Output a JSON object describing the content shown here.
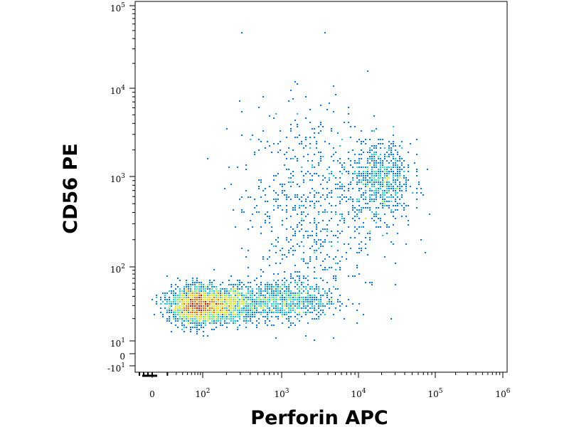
{
  "chart_data": {
    "type": "scatter",
    "subtype": "flow-cytometry-density-dot-plot",
    "xlabel": "Perforin APC",
    "ylabel": "CD56 PE",
    "x_scale": "biexponential",
    "y_scale": "biexponential",
    "xlim": [
      -30,
      1000000
    ],
    "ylim": [
      -20,
      150000
    ],
    "grid": false,
    "x_ticks": [
      {
        "value": 0,
        "base": "0",
        "exp": ""
      },
      {
        "value": 100,
        "base": "10",
        "exp": "2"
      },
      {
        "value": 1000,
        "base": "10",
        "exp": "3"
      },
      {
        "value": 10000,
        "base": "10",
        "exp": "4"
      },
      {
        "value": 100000,
        "base": "10",
        "exp": "5"
      },
      {
        "value": 1000000,
        "base": "10",
        "exp": "6"
      }
    ],
    "y_ticks": [
      {
        "value": -10,
        "base": "-10",
        "exp": "1"
      },
      {
        "value": 0,
        "base": "0",
        "exp": ""
      },
      {
        "value": 10,
        "base": "10",
        "exp": "1"
      },
      {
        "value": 100,
        "base": "10",
        "exp": "2"
      },
      {
        "value": 1000,
        "base": "10",
        "exp": "3"
      },
      {
        "value": 10000,
        "base": "10",
        "exp": "4"
      },
      {
        "value": 100000,
        "base": "10",
        "exp": "5"
      }
    ],
    "populations": [
      {
        "name": "",
        "x_center": 100,
        "y_center": 30,
        "x_spread_decades": 0.3,
        "y_spread_decades": 0.12,
        "relative_events": 55
      },
      {
        "name": "",
        "x_center": 1000,
        "y_center": 35,
        "x_spread_decades": 0.35,
        "y_spread_decades": 0.14,
        "relative_events": 18
      },
      {
        "name": "",
        "x_center": 2500,
        "y_center": 500,
        "x_spread_decades": 0.45,
        "y_spread_decades": 0.55,
        "relative_events": 14
      },
      {
        "name": "",
        "x_center": 20000,
        "y_center": 900,
        "x_spread_decades": 0.2,
        "y_spread_decades": 0.22,
        "relative_events": 13
      }
    ],
    "density_color_scale": [
      "#0000cc",
      "#0077ff",
      "#00d0ff",
      "#30ff90",
      "#c8ff00",
      "#ffd000",
      "#ff6000",
      "#e00000"
    ]
  }
}
